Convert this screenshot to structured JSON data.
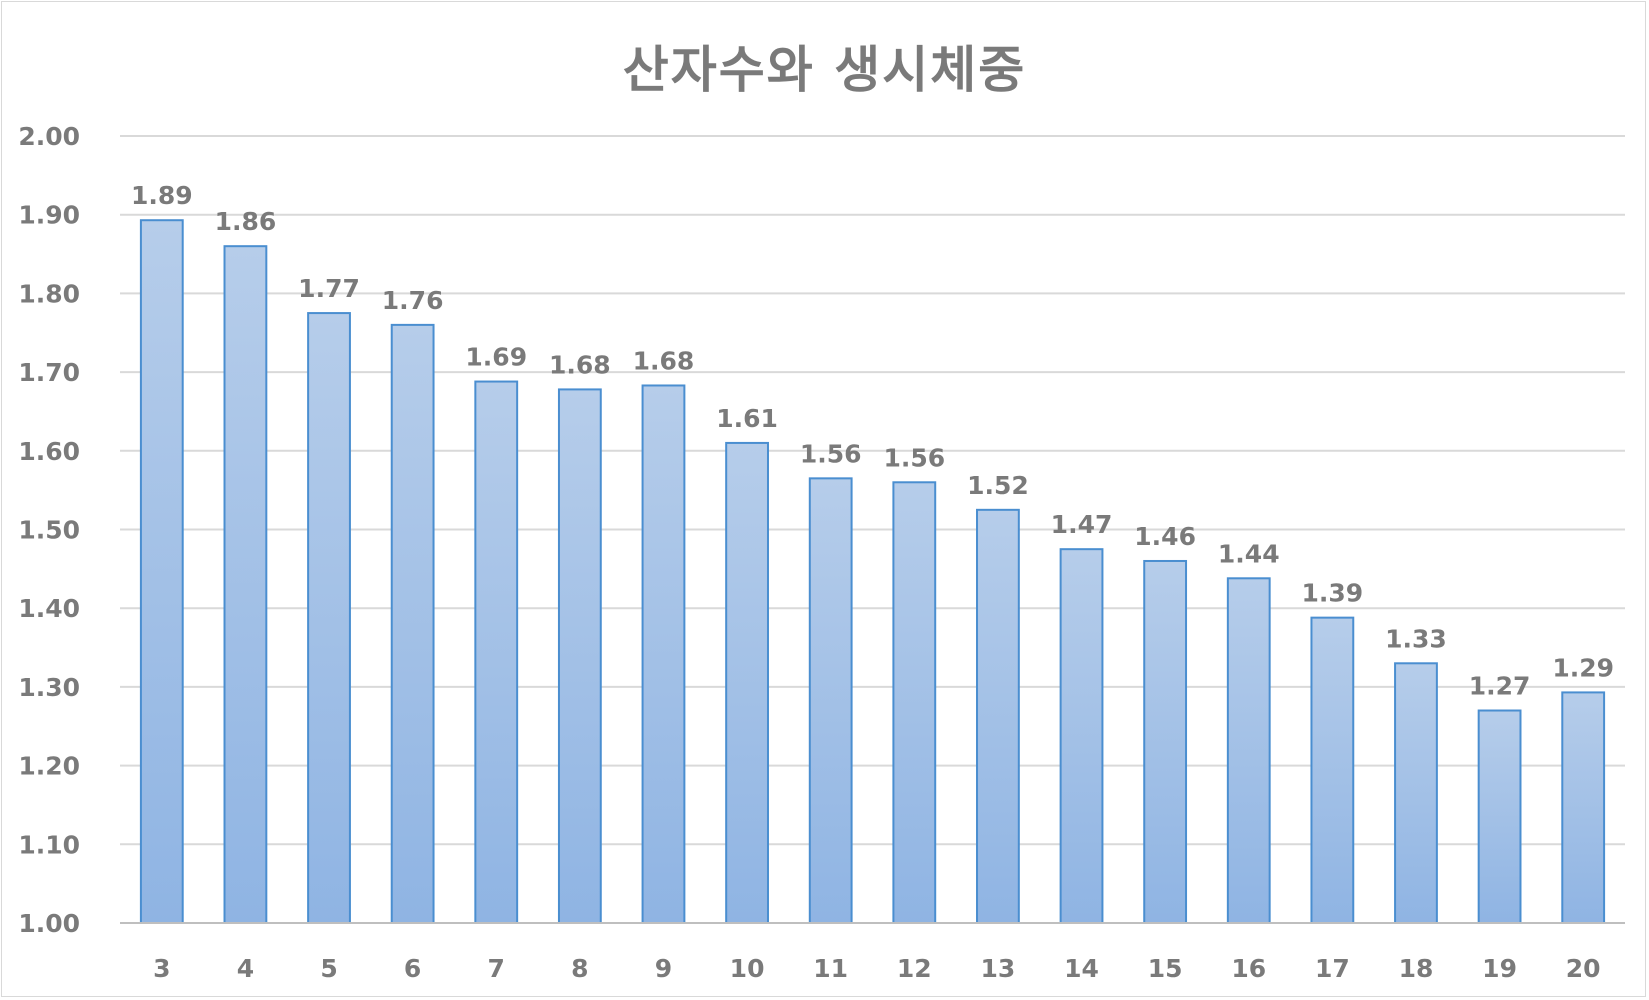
{
  "chart_data": {
    "type": "bar",
    "title": "산자수와 생시체중",
    "xlabel": "",
    "ylabel": "",
    "categories": [
      "3",
      "4",
      "5",
      "6",
      "7",
      "8",
      "9",
      "10",
      "11",
      "12",
      "13",
      "14",
      "15",
      "16",
      "17",
      "18",
      "19",
      "20"
    ],
    "values": [
      1.893,
      1.86,
      1.775,
      1.76,
      1.688,
      1.678,
      1.683,
      1.61,
      1.565,
      1.56,
      1.525,
      1.475,
      1.46,
      1.438,
      1.388,
      1.33,
      1.27,
      1.293
    ],
    "data_labels": [
      "1.89",
      "1.86",
      "1.77",
      "1.76",
      "1.69",
      "1.68",
      "1.68",
      "1.61",
      "1.56",
      "1.56",
      "1.52",
      "1.47",
      "1.46",
      "1.44",
      "1.39",
      "1.33",
      "1.27",
      "1.29"
    ],
    "ylim": [
      1.0,
      2.0
    ],
    "yticks": [
      "1.00",
      "1.10",
      "1.20",
      "1.30",
      "1.40",
      "1.50",
      "1.60",
      "1.70",
      "1.80",
      "1.90",
      "2.00"
    ],
    "grid": true,
    "legend": "none",
    "colors": {
      "bar_top": "#b6cdea",
      "bar_bottom": "#8fb4e3",
      "bar_border": "#4a8ed0",
      "grid": "#d9d9d9",
      "axis": "#bfbfbf",
      "text": "#7a7a7a"
    }
  }
}
